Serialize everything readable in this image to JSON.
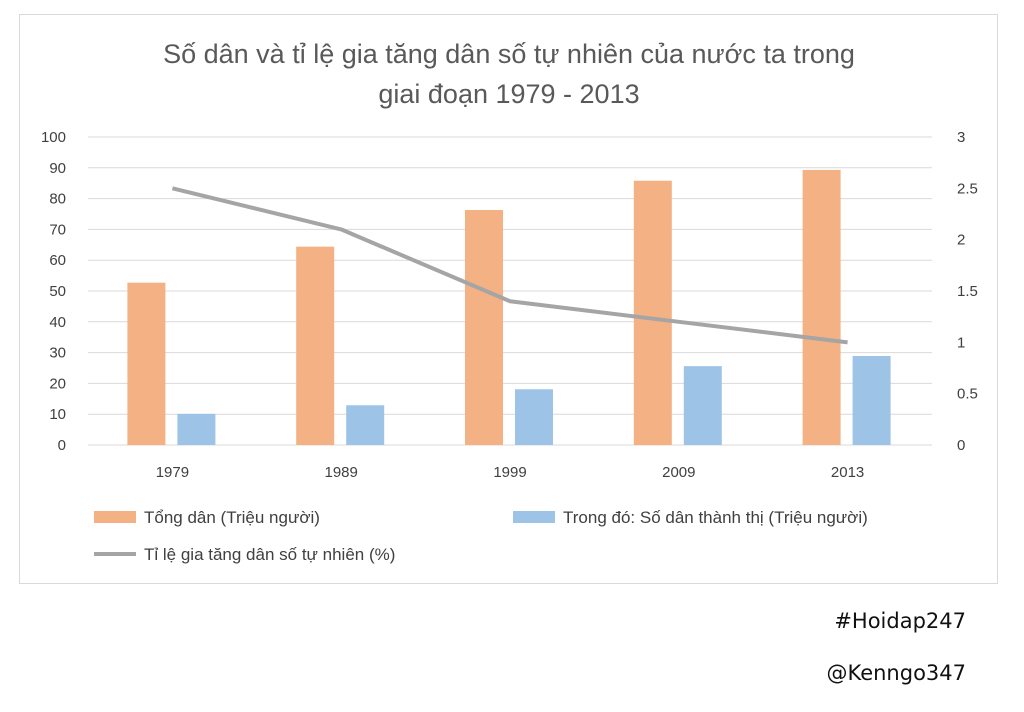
{
  "chart_data": {
    "type": "bar+line",
    "title_lines": [
      "Số dân và tỉ lệ gia tăng dân số tự nhiên của nước ta trong",
      "giai đoạn 1979 - 2013"
    ],
    "categories": [
      "1979",
      "1989",
      "1999",
      "2009",
      "2013"
    ],
    "series": [
      {
        "name": "Tổng dân (Triệu người)",
        "type": "bar",
        "axis": "left",
        "color": "#F4B183",
        "values": [
          52.7,
          64.4,
          76.3,
          85.8,
          89.3
        ]
      },
      {
        "name": "Trong đó: Số dân thành thị (Triệu người)",
        "type": "bar",
        "axis": "left",
        "color": "#9DC3E6",
        "values": [
          10.1,
          12.9,
          18.1,
          25.6,
          28.9
        ]
      },
      {
        "name": "Tỉ lệ gia tăng dân số tự nhiên (%)",
        "type": "line",
        "axis": "right",
        "color": "#A5A5A5",
        "values": [
          2.5,
          2.1,
          1.4,
          1.2,
          1.0
        ]
      }
    ],
    "y_left": {
      "min": 0,
      "max": 100,
      "ticks": [
        "0",
        "10",
        "20",
        "30",
        "40",
        "50",
        "60",
        "70",
        "80",
        "90",
        "100"
      ]
    },
    "y_right": {
      "min": 0,
      "max": 3,
      "ticks": [
        "0",
        "0.5",
        "1",
        "1.5",
        "2",
        "2.5",
        "3"
      ]
    },
    "grid": true,
    "legend_position": "bottom"
  },
  "watermarks": [
    "#Hoidap247",
    "@Kenngo347"
  ]
}
